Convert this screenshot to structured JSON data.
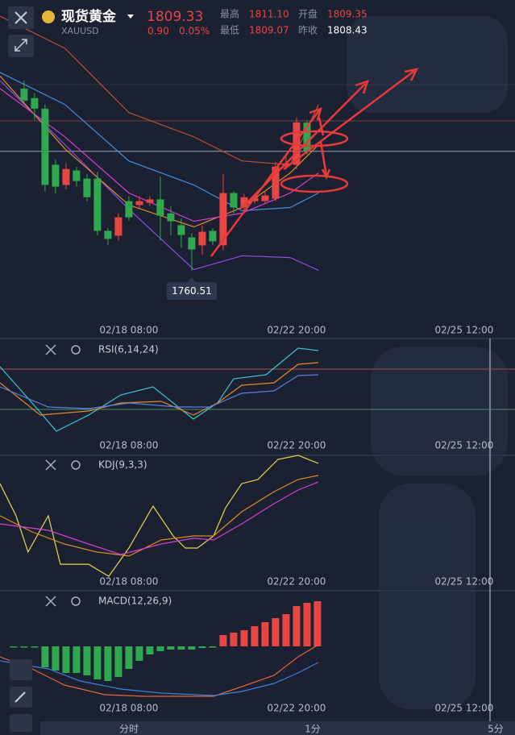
{
  "header": {
    "title": "现货黄金",
    "symbol": "XAUUSD",
    "price": 1809.33,
    "change": "0.90",
    "change_pct": "0.05%",
    "stats": [
      {
        "label": "最高",
        "value": "1811.10",
        "color": "#e84545"
      },
      {
        "label": "开盘",
        "value": "1809.35",
        "color": "#e84545"
      },
      {
        "label": "最低",
        "value": "1809.07",
        "color": "#e84545"
      },
      {
        "label": "昨收",
        "value": "1808.43",
        "color": "#ffffff"
      }
    ]
  },
  "main": {
    "xlim": [
      -2.3,
      46.85
    ],
    "ylim": [
      1733,
      1871
    ],
    "xticks": [
      {
        "value": 10,
        "label": "02/18 08:00"
      },
      {
        "value": 26,
        "label": "02/22 20:00"
      },
      {
        "value": 42,
        "label": "02/25 12:00"
      }
    ],
    "up_color": "#e84545",
    "down_color": "#2fa84f",
    "candles": {
      "x": [
        0,
        1,
        2,
        3,
        4,
        5,
        6,
        7,
        8,
        9,
        10,
        11,
        12,
        13,
        14,
        15,
        16,
        17,
        18,
        19,
        20,
        21,
        22,
        23,
        24,
        25,
        26,
        27
      ],
      "open": [
        1834.9,
        1831,
        1826.7,
        1803.8,
        1795.6,
        1801.5,
        1798.2,
        1798.2,
        1776.9,
        1774.9,
        1789,
        1787.4,
        1788.3,
        1789.7,
        1784,
        1779.2,
        1774.2,
        1771,
        1776.9,
        1771,
        1792.3,
        1786.4,
        1789,
        1789,
        1790,
        1803.1,
        1803.8,
        1821
      ],
      "high": [
        1838.2,
        1833,
        1828.4,
        1806,
        1804.5,
        1803,
        1800,
        1801,
        1778,
        1784,
        1791,
        1791,
        1791,
        1799,
        1787,
        1782,
        1776,
        1779,
        1778,
        1800,
        1793,
        1792,
        1792,
        1793,
        1805,
        1808,
        1823,
        1822
      ],
      "low": [
        1828.4,
        1822,
        1793,
        1792,
        1793.8,
        1795,
        1789,
        1775,
        1771,
        1773,
        1781,
        1786,
        1787,
        1773,
        1775,
        1770,
        1760.51,
        1767,
        1771,
        1769,
        1784,
        1784,
        1788,
        1788,
        1789,
        1802,
        1802,
        1808
      ],
      "close": [
        1830,
        1826.7,
        1795.6,
        1794.9,
        1802.1,
        1797.2,
        1790.6,
        1776.9,
        1773.6,
        1782.4,
        1782.4,
        1789,
        1789.7,
        1783.1,
        1780.8,
        1775.2,
        1769.3,
        1776.5,
        1772.6,
        1792.3,
        1786.4,
        1790.6,
        1790.3,
        1791.3,
        1803.1,
        1804.4,
        1821.1,
        1809.33
      ]
    },
    "lines": [
      {
        "color": "#b5503a",
        "x": [
          -2.3,
          3.9,
          10,
          16.2,
          20.8,
          25.4,
          28.1
        ],
        "values": [
          1864.4,
          1851.3,
          1825.1,
          1815.2,
          1805.4,
          1803.8,
          1828.4
        ]
      },
      {
        "color": "#3d8fe0",
        "x": [
          -2.3,
          3.9,
          10,
          16.2,
          20.8,
          25.4,
          28.1
        ],
        "values": [
          1841.5,
          1828.4,
          1805.4,
          1795.6,
          1785.1,
          1786.4,
          1792.3
        ]
      },
      {
        "color": "#8a4de0",
        "x": [
          -2.3,
          3.9,
          10,
          16.2,
          20.8,
          25.4,
          28.1
        ],
        "values": [
          1838.2,
          1812,
          1785.7,
          1761.1,
          1766.7,
          1766,
          1760.8
        ]
      },
      {
        "color": "#e08a2a",
        "x": [
          -2.3,
          3.9,
          10,
          16.2,
          20.8,
          25.4,
          28.1
        ],
        "values": [
          1840,
          1810.3,
          1787.4,
          1778.5,
          1786.4,
          1800.5,
          1812
        ]
      },
      {
        "color": "#d43fd4",
        "x": [
          -2.3,
          3.9,
          10,
          16.2,
          20.8,
          25.4,
          28.1
        ],
        "values": [
          1834.9,
          1815.2,
          1792.3,
          1780.8,
          1784.1,
          1792.3,
          1800.5
        ]
      }
    ]
  },
  "rsi": {
    "label": "RSI(6,14,24)",
    "ylim": [
      0,
      100
    ],
    "levels": [
      {
        "value": 70,
        "color": "#a0504a"
      },
      {
        "value": 30,
        "color": "#4a8a6a"
      }
    ],
    "lines": [
      {
        "color": "#39c6d6",
        "x": [
          -2.3,
          0.77,
          3.08,
          6.15,
          9.23,
          12.31,
          16.15,
          18.46,
          20,
          23.08,
          26.15,
          28.08
        ],
        "values": [
          72.4,
          36.4,
          8.4,
          24.4,
          44.4,
          52.4,
          20.4,
          36.4,
          60.4,
          64.4,
          90.8,
          88.4
        ]
      },
      {
        "color": "#e08a2a",
        "x": [
          -2.3,
          1.54,
          6.15,
          9.23,
          13.08,
          16.15,
          18.46,
          20.77,
          23.85,
          26.15,
          28.08
        ],
        "values": [
          56.4,
          24.4,
          28.4,
          36.4,
          38,
          24.4,
          36.4,
          54,
          56.4,
          74.8,
          76.4
        ]
      },
      {
        "color": "#5a7fe0",
        "x": [
          -2.3,
          2.31,
          6.15,
          10,
          14.62,
          17.69,
          20.77,
          23.85,
          26.15,
          28.08
        ],
        "values": [
          52.4,
          32.4,
          30.8,
          36.4,
          32.4,
          32.4,
          46,
          48.4,
          63.6,
          64.4
        ]
      }
    ]
  },
  "kdj": {
    "label": "KDJ(9,3,3)",
    "ylim": [
      0,
      100
    ],
    "lines": [
      {
        "color": "#e6d84a",
        "x": [
          -2.3,
          -0.77,
          0.38,
          2.31,
          3.46,
          6.15,
          8.08,
          10,
          12.31,
          14.23,
          15.38,
          16.54,
          18.08,
          19.23,
          20.77,
          22.31,
          24.23,
          26.15,
          28.08
        ],
        "values": [
          82,
          56.4,
          27.6,
          56.4,
          17.9,
          17.9,
          8.3,
          30.8,
          64.1,
          40.4,
          30.8,
          30.8,
          40.4,
          62.8,
          82,
          85.3,
          101.3,
          104.5,
          98.1
        ]
      },
      {
        "color": "#e08a2a",
        "x": [
          -2.3,
          0.77,
          3.85,
          6.92,
          10,
          13.08,
          16.15,
          18.08,
          20.77,
          23.85,
          26.15,
          28.08
        ],
        "values": [
          56.4,
          43.6,
          34,
          27.6,
          24.4,
          37.2,
          40.4,
          40.4,
          59.6,
          75.6,
          85.3,
          88.5
        ]
      },
      {
        "color": "#d43fd4",
        "x": [
          -2.3,
          2.31,
          6.15,
          9.23,
          13.08,
          16.15,
          18.08,
          20.77,
          23.85,
          26.15,
          28.08
        ],
        "values": [
          50,
          44.9,
          34,
          25.6,
          34,
          38.5,
          37.2,
          50,
          66,
          76.9,
          83.3
        ]
      }
    ]
  },
  "macd": {
    "label": "MACD(12,26,9)",
    "ylim": [
      -10,
      10
    ],
    "bars": {
      "x": [
        -1,
        0,
        1,
        2,
        3,
        4,
        5,
        6,
        7,
        8,
        9,
        10,
        11,
        12,
        13,
        14,
        15,
        16,
        17,
        18,
        19,
        20,
        21,
        22,
        23,
        24,
        25,
        26,
        27,
        28
      ],
      "values": [
        -0.1,
        -0.1,
        -0.1,
        -2.6,
        -3,
        -3.3,
        -3.3,
        -3.6,
        -4.1,
        -4.3,
        -3.8,
        -2.8,
        -1.8,
        -1,
        -0.6,
        -0.4,
        -0.4,
        -0.4,
        -0.2,
        -0.1,
        1.4,
        1.7,
        2,
        2.5,
        3,
        3.5,
        4,
        5,
        5.4,
        5.6
      ]
    },
    "lines": [
      {
        "color": "#e0663a",
        "x": [
          -2.3,
          0.77,
          3.85,
          7.69,
          11.54,
          15.38,
          18.08,
          20.77,
          23.85,
          26.15,
          28.08
        ],
        "values": [
          -1.3,
          -2.8,
          -4.8,
          -6,
          -6.2,
          -6.2,
          -6.2,
          -5,
          -3.6,
          -1.3,
          0.2
        ]
      },
      {
        "color": "#3d7fe0",
        "x": [
          -2.3,
          2.31,
          5.38,
          9.23,
          13.08,
          18.08,
          20.77,
          23.85,
          26.15,
          28.08
        ],
        "values": [
          -1.8,
          -2.8,
          -4.3,
          -5.3,
          -5.8,
          -6.1,
          -5.6,
          -4.6,
          -3.3,
          -2
        ]
      }
    ]
  },
  "tabs": [
    "分时",
    "1分",
    "5分"
  ]
}
